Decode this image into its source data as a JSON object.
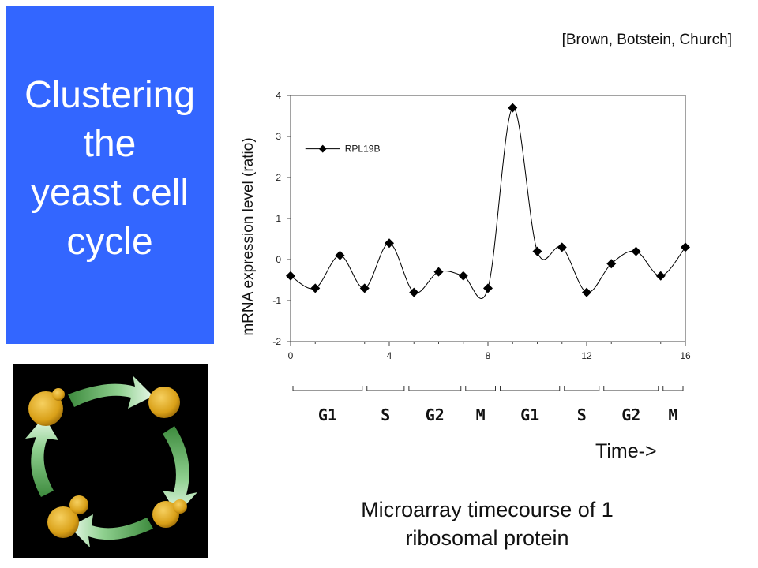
{
  "title": {
    "lines": [
      "Clustering",
      "the",
      "yeast cell",
      "cycle"
    ]
  },
  "citation": "[Brown, Botstein, Church]",
  "caption": {
    "lines": [
      "Microarray timecourse of 1",
      "ribosomal protein"
    ]
  },
  "time_label": "Time->",
  "colors": {
    "title_bg": "#3366ff",
    "title_text": "#ffffff",
    "cycle_bg": "#000000",
    "arrow_green": "#6fb86f",
    "cell_yellow": "#e0a820"
  },
  "chart_data": {
    "type": "line",
    "ylabel": "mRNA expression level (ratio)",
    "xlim": [
      0,
      16
    ],
    "ylim": [
      -2,
      4
    ],
    "x_ticks": [
      0,
      4,
      8,
      12,
      16
    ],
    "y_ticks": [
      -2,
      -1,
      0,
      1,
      2,
      3,
      4
    ],
    "grid": false,
    "legend": "top-left",
    "series": [
      {
        "name": "RPL19B",
        "x": [
          0,
          1,
          2,
          3,
          4,
          5,
          6,
          7,
          8,
          9,
          10,
          11,
          12,
          13,
          14,
          15,
          16
        ],
        "values": [
          -0.4,
          -0.7,
          0.1,
          -0.7,
          0.4,
          -0.8,
          -0.3,
          -0.4,
          -0.7,
          3.7,
          0.2,
          0.3,
          -0.8,
          -0.1,
          0.2,
          -0.4,
          0.3
        ]
      }
    ],
    "phases": [
      {
        "label": "G1",
        "start": 0,
        "end": 3
      },
      {
        "label": "S",
        "start": 3,
        "end": 4.7
      },
      {
        "label": "G2",
        "start": 4.7,
        "end": 7
      },
      {
        "label": "M",
        "start": 7,
        "end": 8.4
      },
      {
        "label": "G1",
        "start": 8.4,
        "end": 11
      },
      {
        "label": "S",
        "start": 11,
        "end": 12.6
      },
      {
        "label": "G2",
        "start": 12.6,
        "end": 15
      },
      {
        "label": "M",
        "start": 15,
        "end": 16
      }
    ]
  }
}
